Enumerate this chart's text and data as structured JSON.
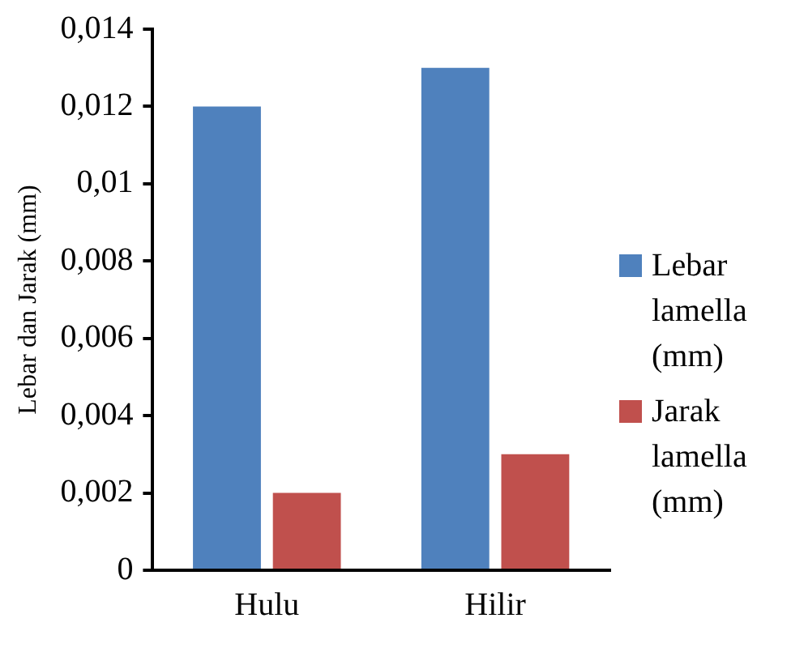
{
  "chart_data": {
    "type": "bar",
    "ylabel": "Lebar dan Jarak (mm)",
    "categories": [
      "Hulu",
      "Hilir"
    ],
    "series": [
      {
        "name": "Lebar lamella (mm)",
        "color": "#4f81bd",
        "values": [
          0.012,
          0.013
        ]
      },
      {
        "name": "Jarak lamella (mm)",
        "color": "#c0504d",
        "values": [
          0.002,
          0.003
        ]
      }
    ],
    "ylim": [
      0,
      0.014
    ],
    "yticks": [
      0,
      {
        "value": 0.002,
        "label": "0,002"
      },
      {
        "value": 0.004,
        "label": "0,004"
      },
      {
        "value": 0.006,
        "label": "0,006"
      },
      {
        "value": 0.008,
        "label": "0,008"
      },
      {
        "value": 0.01,
        "label": "0,01"
      },
      {
        "value": 0.012,
        "label": "0,012"
      },
      {
        "value": 0.014,
        "label": "0,014"
      }
    ],
    "grid": false,
    "legend": "right"
  }
}
